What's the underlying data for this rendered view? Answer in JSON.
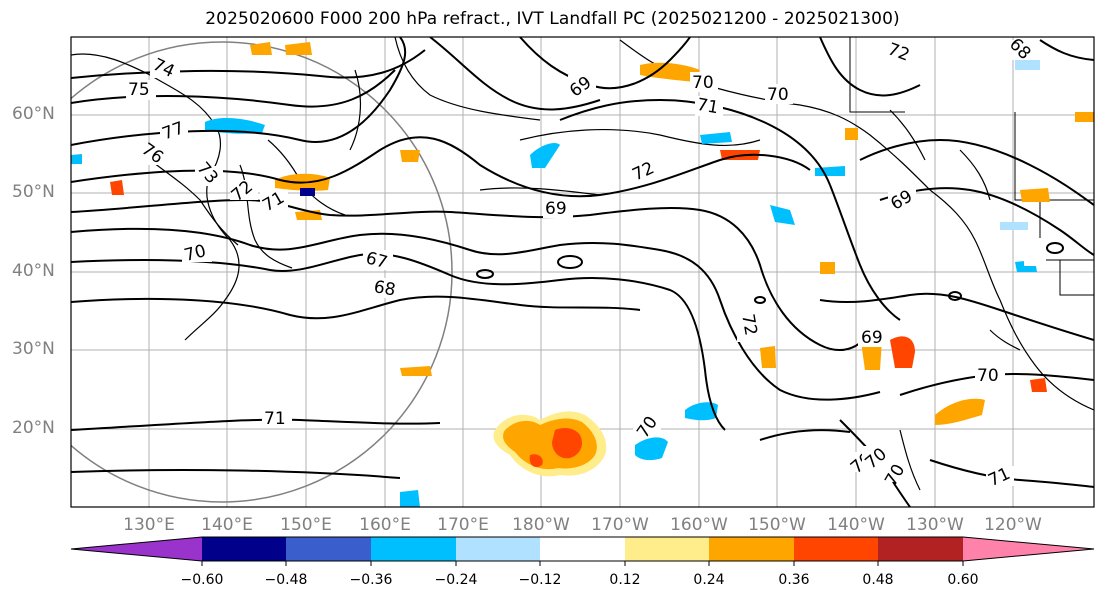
{
  "title": "2025020600 F000 200 hPa refract., IVT Landfall PC (2025021200 - 2025021300)",
  "lat_labels": [
    "60°N",
    "50°N",
    "40°N",
    "30°N",
    "20°N"
  ],
  "lon_labels": [
    "130°E",
    "140°E",
    "150°E",
    "160°E",
    "170°E",
    "180°W",
    "170°W",
    "160°W",
    "150°W",
    "140°W",
    "130°W",
    "120°W"
  ],
  "contour_labels": [
    "74",
    "75",
    "77",
    "76",
    "73",
    "72",
    "71",
    "70",
    "69",
    "67",
    "68",
    "69",
    "70",
    "71",
    "70",
    "72",
    "69",
    "72",
    "70",
    "69",
    "70",
    "70",
    "70",
    "70",
    "71",
    "71",
    "72",
    "68"
  ],
  "colorbar": {
    "colors": [
      "#9933cc",
      "#00008b",
      "#3a5fcd",
      "#00bfff",
      "#b0e2ff",
      "#ffffff",
      "#ffec8b",
      "#ffa500",
      "#ff4500",
      "#b22222",
      "#ff82ab"
    ],
    "ticks": [
      "−0.60",
      "−0.48",
      "−0.36",
      "−0.24",
      "−0.12",
      "0.12",
      "0.24",
      "0.36",
      "0.48",
      "0.60"
    ],
    "extend": "both"
  }
}
